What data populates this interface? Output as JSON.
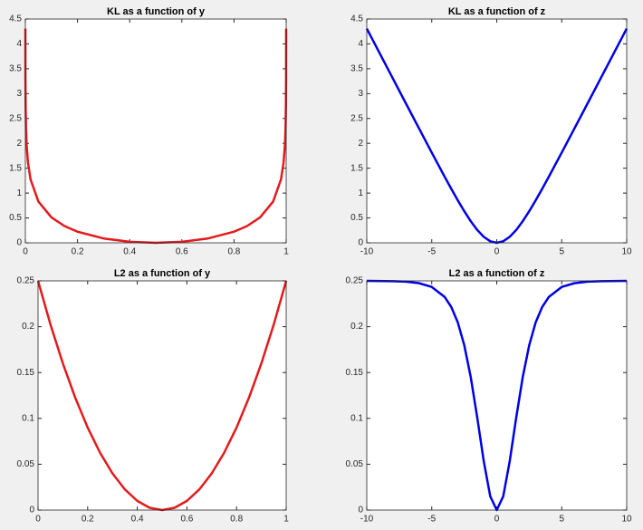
{
  "chart_data": [
    {
      "type": "line",
      "title": "KL as a function of y",
      "x": [
        4.54e-05,
        0.000335,
        0.001,
        0.0025,
        0.005,
        0.01,
        0.02,
        0.05,
        0.1,
        0.15,
        0.2,
        0.3,
        0.4,
        0.5,
        0.6,
        0.7,
        0.8,
        0.85,
        0.9,
        0.95,
        0.98,
        0.99,
        0.995,
        0.9975,
        0.999,
        0.999665,
        0.9999546
      ],
      "values": [
        4.3069,
        3.3075,
        2.7613,
        2.3039,
        1.9585,
        1.6145,
        1.273,
        0.8304,
        0.5108,
        0.3367,
        0.2231,
        0.0872,
        0.0204,
        0,
        0.0204,
        0.0872,
        0.2231,
        0.3367,
        0.5108,
        0.8304,
        1.273,
        1.6145,
        1.9585,
        2.3039,
        2.7613,
        3.3075,
        4.3069
      ],
      "color": "#e31a1c",
      "xlim": [
        0,
        1
      ],
      "ylim": [
        0,
        4.5
      ],
      "xticks": [
        0,
        0.2,
        0.4,
        0.6,
        0.8,
        1
      ],
      "yticks": [
        0,
        0.5,
        1,
        1.5,
        2,
        2.5,
        3,
        3.5,
        4,
        4.5
      ]
    },
    {
      "type": "line",
      "title": "KL as a function of z",
      "x": [
        -10,
        -8,
        -7,
        -6,
        -5,
        -4,
        -3.5,
        -3,
        -2.5,
        -2,
        -1.5,
        -1,
        -0.5,
        0,
        0.5,
        1,
        1.5,
        2,
        2.5,
        3,
        3.5,
        4,
        5,
        6,
        7,
        8,
        10
      ],
      "values": [
        4.3069,
        3.3075,
        2.808,
        2.3098,
        1.8136,
        1.3249,
        1.0867,
        0.8554,
        0.6358,
        0.4338,
        0.2583,
        0.1202,
        0.031,
        0,
        0.031,
        0.1202,
        0.2583,
        0.4338,
        0.6358,
        0.8554,
        1.0867,
        1.3249,
        1.8136,
        2.3098,
        2.808,
        3.3075,
        4.3069
      ],
      "color": "#0000e6",
      "xlim": [
        -10,
        10
      ],
      "ylim": [
        0,
        4.5
      ],
      "xticks": [
        -10,
        -5,
        0,
        5,
        10
      ],
      "yticks": [
        0,
        0.5,
        1,
        1.5,
        2,
        2.5,
        3,
        3.5,
        4,
        4.5
      ]
    },
    {
      "type": "line",
      "title": "L2 as a function of y",
      "x": [
        0,
        0.05,
        0.1,
        0.15,
        0.2,
        0.25,
        0.3,
        0.35,
        0.4,
        0.45,
        0.5,
        0.55,
        0.6,
        0.65,
        0.7,
        0.75,
        0.8,
        0.85,
        0.9,
        0.95,
        1
      ],
      "values": [
        0.25,
        0.2025,
        0.16,
        0.1225,
        0.09,
        0.0625,
        0.04,
        0.0225,
        0.01,
        0.0025,
        0,
        0.0025,
        0.01,
        0.0225,
        0.04,
        0.0625,
        0.09,
        0.1225,
        0.16,
        0.2025,
        0.25
      ],
      "color": "#e31a1c",
      "xlim": [
        0,
        1
      ],
      "ylim": [
        0,
        0.25
      ],
      "xticks": [
        0,
        0.2,
        0.4,
        0.6,
        0.8,
        1
      ],
      "yticks": [
        0,
        0.05,
        0.1,
        0.15,
        0.2,
        0.25
      ]
    },
    {
      "type": "line",
      "title": "L2 as a function of z",
      "x": [
        -10,
        -8,
        -7,
        -6,
        -5,
        -4,
        -3.5,
        -3,
        -2.5,
        -2,
        -1.5,
        -1,
        -0.5,
        0,
        0.5,
        1,
        1.5,
        2,
        2.5,
        3,
        3.5,
        4,
        5,
        6,
        7,
        8,
        10
      ],
      "values": [
        0.249955,
        0.24966,
        0.24909,
        0.247536,
        0.243355,
        0.232334,
        0.221549,
        0.20482,
        0.179895,
        0.145009,
        0.100851,
        0.053389,
        0.014997,
        0,
        0.014997,
        0.053389,
        0.100851,
        0.145009,
        0.179895,
        0.20482,
        0.221549,
        0.232334,
        0.243355,
        0.247536,
        0.24909,
        0.24966,
        0.249955
      ],
      "color": "#0000e6",
      "xlim": [
        -10,
        10
      ],
      "ylim": [
        0,
        0.25
      ],
      "xticks": [
        -10,
        -5,
        0,
        5,
        10
      ],
      "yticks": [
        0,
        0.05,
        0.1,
        0.15,
        0.2,
        0.25
      ]
    }
  ]
}
